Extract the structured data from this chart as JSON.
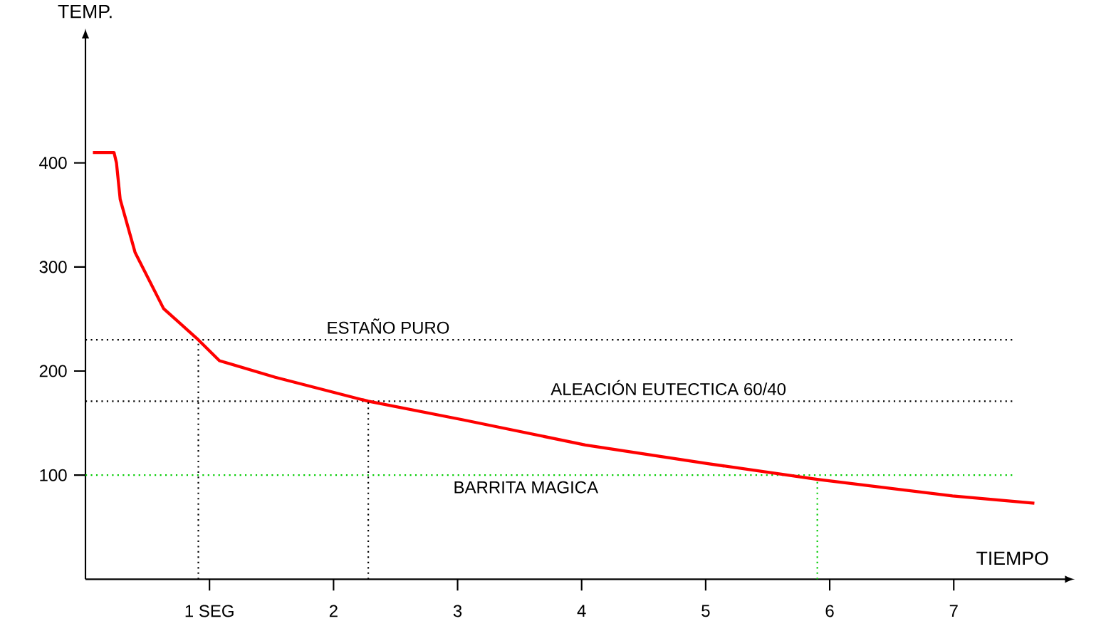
{
  "chart_data": {
    "type": "line",
    "xlabel": "TIEMPO",
    "ylabel": "TEMP.",
    "xlim": [
      0,
      7.9
    ],
    "ylim": [
      0,
      520
    ],
    "xticks": [
      {
        "value": 1,
        "label": "1 SEG"
      },
      2,
      3,
      4,
      5,
      6,
      7
    ],
    "yticks": [
      100,
      200,
      300,
      400
    ],
    "grid": false,
    "series": [
      {
        "color": "#ff0000",
        "x": [
          0.06,
          0.23,
          0.25,
          0.28,
          0.4,
          0.63,
          0.91,
          1.08,
          1.53,
          2.28,
          3.05,
          4.03,
          5.02,
          5.9,
          6.99,
          7.65
        ],
        "values": [
          410,
          410,
          400,
          365,
          314,
          260,
          230,
          210,
          194,
          171,
          153,
          129,
          111,
          96,
          80,
          73
        ]
      },
      {
        "color": "#000000",
        "line_style": "dotted",
        "x": [
          0.91,
          0.91
        ],
        "values": [
          0,
          230
        ]
      },
      {
        "color": "#000000",
        "line_style": "dotted",
        "x": [
          2.28,
          2.28
        ],
        "values": [
          0,
          171
        ]
      },
      {
        "color": "#00cc00",
        "line_style": "dotted",
        "x": [
          5.9,
          5.9
        ],
        "values": [
          0,
          96
        ]
      }
    ],
    "ref_lines": [
      {
        "axis": "y",
        "value": 230,
        "label": "ESTAÑO PURO",
        "color": "#000000",
        "line_style": "dotted"
      },
      {
        "axis": "y",
        "value": 171,
        "label": "ALEACIÓN EUTECTICA 60/40",
        "color": "#000000",
        "line_style": "dotted"
      },
      {
        "axis": "y",
        "value": 100,
        "label": "BARRITA MAGICA",
        "color": "#00cc00",
        "line_style": "dotted"
      }
    ]
  }
}
